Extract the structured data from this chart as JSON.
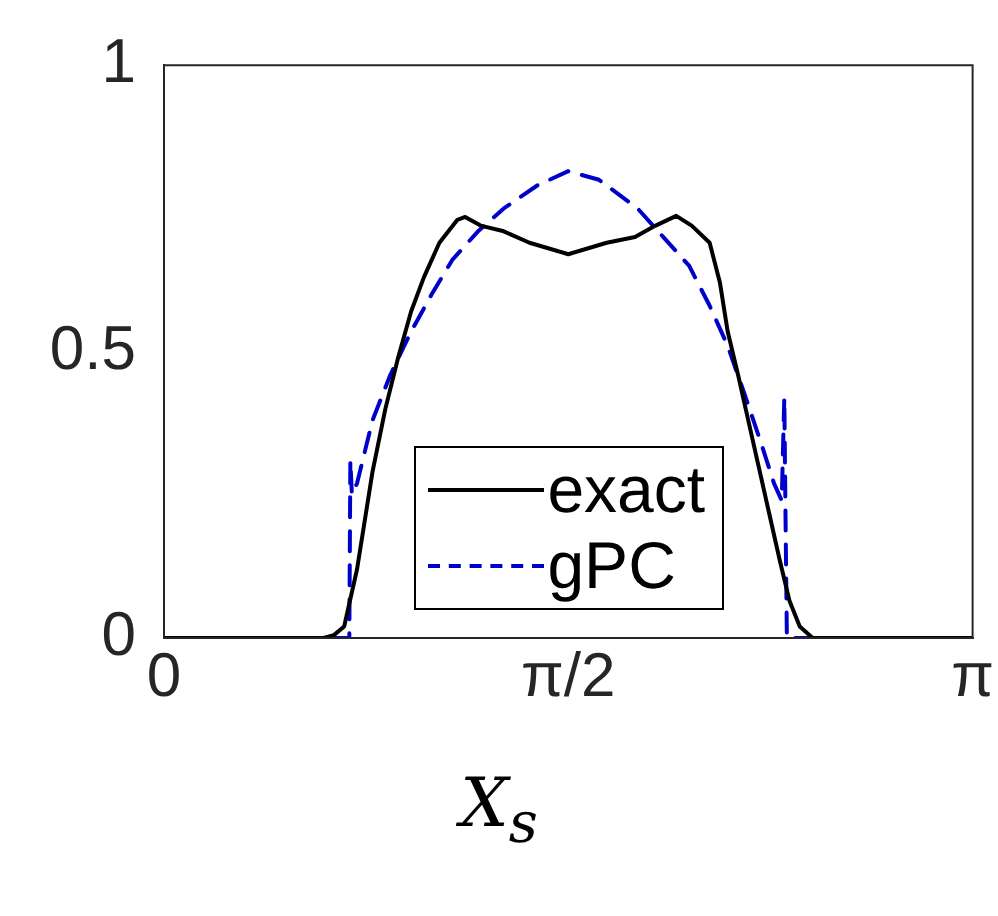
{
  "chart_data": {
    "type": "line",
    "xlabel": "X$_{s}$",
    "xlim": [
      0,
      3.1416
    ],
    "xticks": [
      0,
      {
        "value": 1.5708,
        "label": "π/2"
      },
      {
        "value": 3.1416,
        "label": "π"
      }
    ],
    "ylim": [
      0,
      1
    ],
    "yticks": [
      0,
      0.5,
      1
    ],
    "grid": false,
    "legend": "bottom",
    "marker": "none",
    "series": [
      {
        "name": "exact",
        "color": "#000000",
        "line_style": "solid",
        "x": [
          0,
          0.62,
          0.66,
          0.7,
          0.75,
          0.81,
          0.86,
          0.91,
          0.96,
          1.01,
          1.07,
          1.14,
          1.17,
          1.23,
          1.32,
          1.42,
          1.5708,
          1.72,
          1.83,
          1.91,
          1.99,
          2.05,
          2.12,
          2.16,
          2.19,
          2.23,
          2.27,
          2.31,
          2.35,
          2.39,
          2.43,
          2.47,
          2.52,
          3.1416
        ],
        "values": [
          0,
          0,
          0.005,
          0.02,
          0.12,
          0.29,
          0.4,
          0.49,
          0.57,
          0.63,
          0.69,
          0.73,
          0.735,
          0.72,
          0.71,
          0.69,
          0.67,
          0.69,
          0.7,
          0.72,
          0.737,
          0.72,
          0.69,
          0.62,
          0.535,
          0.46,
          0.38,
          0.3,
          0.22,
          0.14,
          0.065,
          0.02,
          0,
          0
        ]
      },
      {
        "name": "gPC",
        "color": "#0000cc",
        "line_style": "dashed",
        "x": [
          0,
          0.72,
          0.724,
          0.73,
          0.75,
          0.81,
          0.88,
          0.96,
          1.04,
          1.12,
          1.22,
          1.32,
          1.45,
          1.5708,
          1.69,
          1.84,
          1.94,
          2.04,
          2.12,
          2.19,
          2.26,
          2.32,
          2.37,
          2.4,
          2.41,
          2.415,
          2.42,
          3.1416
        ],
        "values": [
          0,
          0,
          0.31,
          0.25,
          0.27,
          0.38,
          0.46,
          0.535,
          0.6,
          0.66,
          0.71,
          0.75,
          0.79,
          0.815,
          0.8,
          0.75,
          0.7,
          0.65,
          0.58,
          0.51,
          0.42,
          0.34,
          0.27,
          0.24,
          0.42,
          0.2,
          0,
          0
        ]
      }
    ]
  }
}
